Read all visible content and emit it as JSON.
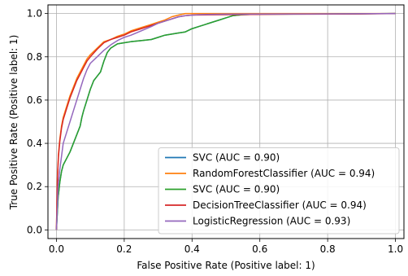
{
  "chart_data": {
    "type": "line",
    "title": "",
    "xlabel": "False Positive Rate (Positive label: 1)",
    "ylabel": "True Positive Rate (Positive label: 1)",
    "xlim": [
      -0.025,
      1.025
    ],
    "ylim": [
      -0.04,
      1.04
    ],
    "xticks": [
      0.0,
      0.2,
      0.4,
      0.6,
      0.8,
      1.0
    ],
    "yticks": [
      0.0,
      0.2,
      0.4,
      0.6,
      0.8,
      1.0
    ],
    "xtick_labels": [
      "0.0",
      "0.2",
      "0.4",
      "0.6",
      "0.8",
      "1.0"
    ],
    "ytick_labels": [
      "0.0",
      "0.2",
      "0.4",
      "0.6",
      "0.8",
      "1.0"
    ],
    "grid": true,
    "legend_position": "lower-right",
    "series": [
      {
        "name": "SVC (AUC = 0.90)",
        "color": "#1f77b4",
        "points": [
          [
            0,
            0
          ],
          [
            0.005,
            0.15
          ],
          [
            0.01,
            0.22
          ],
          [
            0.015,
            0.27
          ],
          [
            0.02,
            0.3
          ],
          [
            0.03,
            0.33
          ],
          [
            0.04,
            0.36
          ],
          [
            0.05,
            0.4
          ],
          [
            0.06,
            0.44
          ],
          [
            0.07,
            0.48
          ],
          [
            0.075,
            0.52
          ],
          [
            0.08,
            0.55
          ],
          [
            0.09,
            0.6
          ],
          [
            0.1,
            0.65
          ],
          [
            0.11,
            0.69
          ],
          [
            0.12,
            0.71
          ],
          [
            0.13,
            0.73
          ],
          [
            0.14,
            0.78
          ],
          [
            0.15,
            0.82
          ],
          [
            0.16,
            0.84
          ],
          [
            0.17,
            0.85
          ],
          [
            0.18,
            0.86
          ],
          [
            0.2,
            0.865
          ],
          [
            0.22,
            0.87
          ],
          [
            0.25,
            0.875
          ],
          [
            0.28,
            0.88
          ],
          [
            0.3,
            0.89
          ],
          [
            0.32,
            0.9
          ],
          [
            0.34,
            0.905
          ],
          [
            0.36,
            0.91
          ],
          [
            0.38,
            0.915
          ],
          [
            0.4,
            0.93
          ],
          [
            0.42,
            0.94
          ],
          [
            0.44,
            0.95
          ],
          [
            0.46,
            0.96
          ],
          [
            0.48,
            0.97
          ],
          [
            0.5,
            0.98
          ],
          [
            0.52,
            0.99
          ],
          [
            0.55,
            0.995
          ],
          [
            0.6,
            0.997
          ],
          [
            0.8,
            0.998
          ],
          [
            1.0,
            1.0
          ]
        ]
      },
      {
        "name": "RandomForestClassifier (AUC = 0.94)",
        "color": "#ff7f0e",
        "points": [
          [
            0,
            0
          ],
          [
            0.003,
            0.25
          ],
          [
            0.006,
            0.35
          ],
          [
            0.01,
            0.42
          ],
          [
            0.015,
            0.48
          ],
          [
            0.02,
            0.52
          ],
          [
            0.03,
            0.57
          ],
          [
            0.04,
            0.62
          ],
          [
            0.05,
            0.66
          ],
          [
            0.06,
            0.7
          ],
          [
            0.07,
            0.73
          ],
          [
            0.08,
            0.76
          ],
          [
            0.09,
            0.79
          ],
          [
            0.1,
            0.81
          ],
          [
            0.12,
            0.84
          ],
          [
            0.14,
            0.87
          ],
          [
            0.16,
            0.88
          ],
          [
            0.18,
            0.895
          ],
          [
            0.2,
            0.905
          ],
          [
            0.22,
            0.92
          ],
          [
            0.25,
            0.935
          ],
          [
            0.28,
            0.95
          ],
          [
            0.3,
            0.96
          ],
          [
            0.32,
            0.97
          ],
          [
            0.34,
            0.985
          ],
          [
            0.36,
            0.993
          ],
          [
            0.38,
            1.0
          ],
          [
            0.6,
            1.0
          ],
          [
            0.8,
            1.0
          ],
          [
            1.0,
            1.0
          ]
        ]
      },
      {
        "name": "SVC (AUC = 0.90)",
        "color": "#2ca02c",
        "points": [
          [
            0,
            0
          ],
          [
            0.005,
            0.15
          ],
          [
            0.01,
            0.22
          ],
          [
            0.015,
            0.27
          ],
          [
            0.02,
            0.3
          ],
          [
            0.03,
            0.33
          ],
          [
            0.04,
            0.36
          ],
          [
            0.05,
            0.4
          ],
          [
            0.06,
            0.44
          ],
          [
            0.07,
            0.48
          ],
          [
            0.075,
            0.52
          ],
          [
            0.08,
            0.55
          ],
          [
            0.09,
            0.6
          ],
          [
            0.1,
            0.65
          ],
          [
            0.11,
            0.69
          ],
          [
            0.12,
            0.71
          ],
          [
            0.13,
            0.73
          ],
          [
            0.14,
            0.78
          ],
          [
            0.15,
            0.82
          ],
          [
            0.16,
            0.84
          ],
          [
            0.17,
            0.85
          ],
          [
            0.18,
            0.86
          ],
          [
            0.2,
            0.865
          ],
          [
            0.22,
            0.87
          ],
          [
            0.25,
            0.875
          ],
          [
            0.28,
            0.88
          ],
          [
            0.3,
            0.89
          ],
          [
            0.32,
            0.9
          ],
          [
            0.34,
            0.905
          ],
          [
            0.36,
            0.91
          ],
          [
            0.38,
            0.915
          ],
          [
            0.4,
            0.93
          ],
          [
            0.42,
            0.94
          ],
          [
            0.44,
            0.95
          ],
          [
            0.46,
            0.96
          ],
          [
            0.48,
            0.97
          ],
          [
            0.5,
            0.98
          ],
          [
            0.52,
            0.99
          ],
          [
            0.55,
            0.995
          ],
          [
            0.6,
            0.997
          ],
          [
            0.8,
            0.998
          ],
          [
            1.0,
            1.0
          ]
        ]
      },
      {
        "name": "DecisionTreeClassifier (AUC = 0.94)",
        "color": "#d62728",
        "points": [
          [
            0,
            0
          ],
          [
            0.003,
            0.24
          ],
          [
            0.006,
            0.34
          ],
          [
            0.01,
            0.41
          ],
          [
            0.015,
            0.47
          ],
          [
            0.02,
            0.51
          ],
          [
            0.03,
            0.56
          ],
          [
            0.04,
            0.61
          ],
          [
            0.05,
            0.65
          ],
          [
            0.06,
            0.69
          ],
          [
            0.07,
            0.72
          ],
          [
            0.08,
            0.75
          ],
          [
            0.09,
            0.78
          ],
          [
            0.1,
            0.8
          ],
          [
            0.12,
            0.835
          ],
          [
            0.14,
            0.865
          ],
          [
            0.16,
            0.88
          ],
          [
            0.18,
            0.89
          ],
          [
            0.2,
            0.9
          ],
          [
            0.22,
            0.915
          ],
          [
            0.25,
            0.93
          ],
          [
            0.28,
            0.945
          ],
          [
            0.3,
            0.955
          ],
          [
            0.32,
            0.965
          ],
          [
            0.34,
            0.975
          ],
          [
            0.36,
            0.985
          ],
          [
            0.38,
            0.99
          ],
          [
            0.4,
            0.993
          ],
          [
            0.5,
            0.995
          ],
          [
            0.7,
            0.997
          ],
          [
            0.9,
            0.998
          ],
          [
            1.0,
            1.0
          ]
        ]
      },
      {
        "name": "LogisticRegression (AUC = 0.93)",
        "color": "#9467bd",
        "points": [
          [
            0,
            0
          ],
          [
            0.005,
            0.2
          ],
          [
            0.01,
            0.28
          ],
          [
            0.015,
            0.34
          ],
          [
            0.02,
            0.4
          ],
          [
            0.03,
            0.45
          ],
          [
            0.04,
            0.5
          ],
          [
            0.05,
            0.55
          ],
          [
            0.06,
            0.6
          ],
          [
            0.07,
            0.65
          ],
          [
            0.08,
            0.7
          ],
          [
            0.09,
            0.74
          ],
          [
            0.1,
            0.77
          ],
          [
            0.12,
            0.8
          ],
          [
            0.14,
            0.83
          ],
          [
            0.16,
            0.855
          ],
          [
            0.18,
            0.875
          ],
          [
            0.2,
            0.89
          ],
          [
            0.22,
            0.9
          ],
          [
            0.25,
            0.92
          ],
          [
            0.28,
            0.94
          ],
          [
            0.3,
            0.955
          ],
          [
            0.32,
            0.965
          ],
          [
            0.34,
            0.975
          ],
          [
            0.36,
            0.985
          ],
          [
            0.38,
            0.99
          ],
          [
            0.42,
            0.995
          ],
          [
            0.5,
            0.997
          ],
          [
            0.7,
            0.998
          ],
          [
            1.0,
            1.0
          ]
        ]
      }
    ]
  }
}
